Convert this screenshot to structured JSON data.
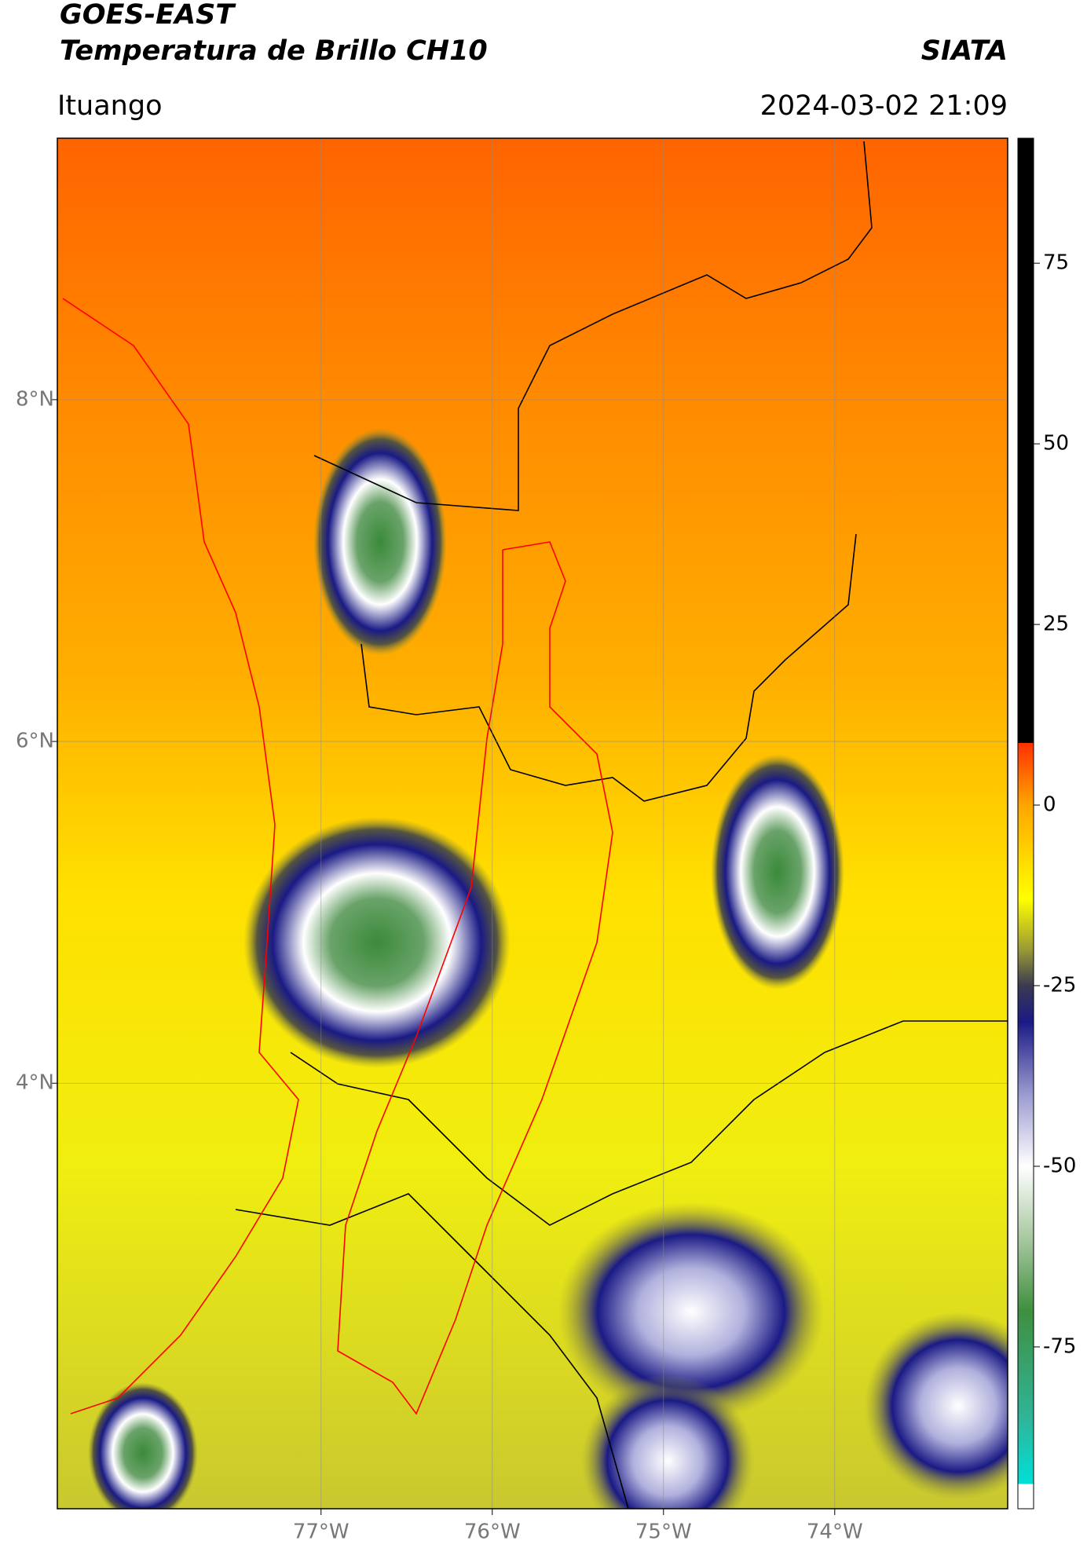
{
  "header": {
    "satellite": "GOES-EAST",
    "product": "Temperatura de Brillo CH10",
    "agency": "SIATA",
    "location": "Ituango",
    "timestamp": "2024-03-02 21:09"
  },
  "map": {
    "lon_lim": [
      -78.54,
      -72.99
    ],
    "lat_lim": [
      1.51,
      9.53
    ],
    "lon_ticks": [
      {
        "value": -77,
        "label": "77°W"
      },
      {
        "value": -76,
        "label": "76°W"
      },
      {
        "value": -75,
        "label": "75°W"
      },
      {
        "value": -74,
        "label": "74°W"
      }
    ],
    "lat_ticks": [
      {
        "value": 8,
        "label": "8°N"
      },
      {
        "value": 6,
        "label": "6°N"
      },
      {
        "value": 4,
        "label": "4°N"
      }
    ]
  },
  "colorbar": {
    "lim": [
      -97.4,
      92.3
    ],
    "ticks": [
      75,
      50,
      25,
      0,
      -25,
      -50,
      -75
    ],
    "stops": [
      [
        -97.4,
        "#ffffff"
      ],
      [
        -94,
        "#ffffff"
      ],
      [
        -94,
        "#00e0d8"
      ],
      [
        -85,
        "#2fb59a"
      ],
      [
        -70,
        "#3f8f3f"
      ],
      [
        -60,
        "#a8c8a0"
      ],
      [
        -50,
        "#ffffff"
      ],
      [
        -40,
        "#9a9ad0"
      ],
      [
        -30,
        "#1a1a85"
      ],
      [
        -25,
        "#3a3a50"
      ],
      [
        -20,
        "#9a9a35"
      ],
      [
        -13,
        "#ffff00"
      ],
      [
        0,
        "#ffa500"
      ],
      [
        8.6,
        "#ff3000"
      ],
      [
        8.6,
        "#000000"
      ],
      [
        92.3,
        "#000000"
      ]
    ]
  }
}
